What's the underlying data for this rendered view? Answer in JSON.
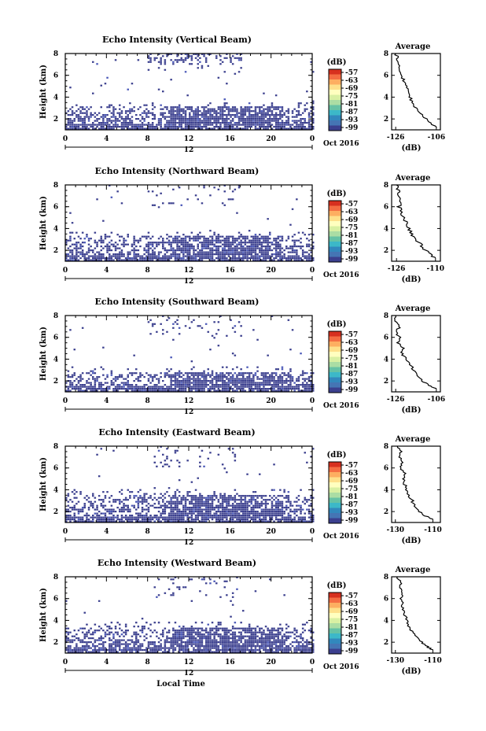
{
  "chart_data": [
    {
      "type": "heatmap",
      "title": "Echo Intensity (Vertical Beam)",
      "ylabel": "Height (km)",
      "y_ticks": [
        "2",
        "4",
        "6",
        "8"
      ],
      "x_ticks": [
        "0",
        "4",
        "8",
        "12",
        "16",
        "20",
        "0"
      ],
      "xlim": [
        0,
        24
      ],
      "ylim": [
        1,
        8
      ],
      "date_label": "12",
      "month_label": "Oct 2016",
      "colorbar": {
        "unit": "(dB)",
        "labels": [
          "-57",
          "-63",
          "-69",
          "-75",
          "-81",
          "-87",
          "-93",
          "-99"
        ]
      },
      "cluster": {
        "top_km": 3.0,
        "upper_echoes": true
      },
      "average_profile": {
        "title": "Average",
        "xlabel": "(dB)",
        "x_ticks": [
          "-126",
          "-106"
        ],
        "y_ticks": [
          "2",
          "4",
          "6",
          "8"
        ],
        "xlim": [
          -128,
          -104
        ],
        "ylim": [
          1,
          8
        ],
        "height_km": [
          1.2,
          1.5,
          2.0,
          2.5,
          3.0,
          3.5,
          4.0,
          4.5,
          5.0,
          5.5,
          6.0,
          6.5,
          7.0,
          7.5,
          8.0
        ],
        "db": [
          -106,
          -108,
          -111,
          -114,
          -116,
          -118,
          -119,
          -120,
          -121,
          -122,
          -123,
          -124,
          -125,
          -125,
          -126
        ]
      }
    },
    {
      "type": "heatmap",
      "title": "Echo Intensity (Northward Beam)",
      "ylabel": "Height (km)",
      "y_ticks": [
        "2",
        "4",
        "6",
        "8"
      ],
      "x_ticks": [
        "0",
        "4",
        "8",
        "12",
        "16",
        "20",
        "0"
      ],
      "xlim": [
        0,
        24
      ],
      "ylim": [
        1,
        8
      ],
      "date_label": "12",
      "month_label": "Oct 2016",
      "colorbar": {
        "unit": "(dB)",
        "labels": [
          "-57",
          "-63",
          "-69",
          "-75",
          "-81",
          "-87",
          "-93",
          "-99"
        ]
      },
      "cluster": {
        "top_km": 3.2,
        "upper_echoes": true
      },
      "average_profile": {
        "title": "Average",
        "xlabel": "(dB)",
        "x_ticks": [
          "-126",
          "-110"
        ],
        "y_ticks": [
          "2",
          "4",
          "6",
          "8"
        ],
        "xlim": [
          -128,
          -108
        ],
        "ylim": [
          1,
          8
        ],
        "height_km": [
          1.3,
          1.6,
          2.0,
          2.5,
          3.0,
          3.5,
          4.0,
          4.5,
          5.0,
          5.5,
          6.0,
          6.5,
          7.0,
          7.5,
          8.0
        ],
        "db": [
          -110,
          -112,
          -114,
          -116,
          -118,
          -120,
          -121,
          -122,
          -123,
          -124,
          -125,
          -124,
          -126,
          -125,
          -126
        ]
      }
    },
    {
      "type": "heatmap",
      "title": "Echo Intensity (Southward Beam)",
      "ylabel": "Height (km)",
      "y_ticks": [
        "2",
        "4",
        "6",
        "8"
      ],
      "x_ticks": [
        "0",
        "4",
        "8",
        "12",
        "16",
        "20",
        "0"
      ],
      "xlim": [
        0,
        24
      ],
      "ylim": [
        1,
        8
      ],
      "date_label": "12",
      "month_label": "Oct 2016",
      "colorbar": {
        "unit": "(dB)",
        "labels": [
          "-57",
          "-63",
          "-69",
          "-75",
          "-81",
          "-87",
          "-93",
          "-99"
        ]
      },
      "cluster": {
        "top_km": 2.8,
        "upper_echoes": true
      },
      "average_profile": {
        "title": "Average",
        "xlabel": "(dB)",
        "x_ticks": [
          "-126",
          "-106"
        ],
        "y_ticks": [
          "2",
          "4",
          "6",
          "8"
        ],
        "xlim": [
          -128,
          -104
        ],
        "ylim": [
          1,
          8
        ],
        "height_km": [
          1.3,
          1.6,
          2.0,
          2.5,
          3.0,
          3.5,
          4.0,
          4.5,
          5.0,
          5.5,
          6.0,
          6.5,
          7.0,
          7.5,
          8.0
        ],
        "db": [
          -106,
          -110,
          -113,
          -115,
          -117,
          -119,
          -121,
          -123,
          -122,
          -125,
          -124,
          -126,
          -124,
          -126,
          -126
        ]
      }
    },
    {
      "type": "heatmap",
      "title": "Echo Intensity (Eastward Beam)",
      "ylabel": "Height (km)",
      "y_ticks": [
        "2",
        "4",
        "6",
        "8"
      ],
      "x_ticks": [
        "0",
        "4",
        "8",
        "12",
        "16",
        "20",
        "0"
      ],
      "xlim": [
        0,
        24
      ],
      "ylim": [
        1,
        8
      ],
      "date_label": "12",
      "month_label": "Oct 2016",
      "colorbar": {
        "unit": "(dB)",
        "labels": [
          "-57",
          "-63",
          "-69",
          "-75",
          "-81",
          "-87",
          "-93",
          "-99"
        ]
      },
      "cluster": {
        "top_km": 3.4,
        "upper_echoes": true
      },
      "average_profile": {
        "title": "Average",
        "xlabel": "(dB)",
        "x_ticks": [
          "-130",
          "-110"
        ],
        "y_ticks": [
          "2",
          "4",
          "6",
          "8"
        ],
        "xlim": [
          -132,
          -106
        ],
        "ylim": [
          1,
          8
        ],
        "height_km": [
          1.3,
          1.6,
          2.0,
          2.5,
          3.0,
          3.5,
          4.0,
          4.5,
          5.0,
          5.5,
          6.0,
          6.5,
          7.0,
          7.5,
          8.0
        ],
        "db": [
          -110,
          -114,
          -117,
          -120,
          -121,
          -123,
          -124,
          -125,
          -126,
          -125,
          -127,
          -126,
          -128,
          -127,
          -129
        ]
      }
    },
    {
      "type": "heatmap",
      "title": "Echo Intensity (Westward Beam)",
      "ylabel": "Height (km)",
      "y_ticks": [
        "2",
        "4",
        "6",
        "8"
      ],
      "x_ticks": [
        "0",
        "4",
        "8",
        "12",
        "16",
        "20",
        "0"
      ],
      "xlim": [
        0,
        24
      ],
      "ylim": [
        1,
        8
      ],
      "date_label": "12",
      "month_label": "Oct 2016",
      "xlabel": "Local Time",
      "colorbar": {
        "unit": "(dB)",
        "labels": [
          "-57",
          "-63",
          "-69",
          "-75",
          "-81",
          "-87",
          "-93",
          "-99"
        ]
      },
      "cluster": {
        "top_km": 3.3,
        "upper_echoes": true
      },
      "average_profile": {
        "title": "Average",
        "xlabel": "(dB)",
        "x_ticks": [
          "-130",
          "-110"
        ],
        "y_ticks": [
          "2",
          "4",
          "6",
          "8"
        ],
        "xlim": [
          -132,
          -106
        ],
        "ylim": [
          1,
          8
        ],
        "height_km": [
          1.3,
          1.6,
          2.0,
          2.5,
          3.0,
          3.5,
          4.0,
          4.5,
          5.0,
          5.5,
          6.0,
          6.5,
          7.0,
          7.5,
          8.0
        ],
        "db": [
          -110,
          -113,
          -116,
          -119,
          -121,
          -123,
          -124,
          -125,
          -126,
          -126,
          -127,
          -126,
          -128,
          -127,
          -129
        ]
      }
    }
  ],
  "colors": {
    "echo_fill": "#3b3f8e",
    "echo_accent": "#4a58b8",
    "colorbar": [
      "#d7301f",
      "#f46d43",
      "#fdae61",
      "#fee08b",
      "#ffffbf",
      "#d9f0a3",
      "#abdda4",
      "#66c2a5",
      "#3cb8c8",
      "#3288bd",
      "#4575b4",
      "#3b3f8e"
    ]
  }
}
